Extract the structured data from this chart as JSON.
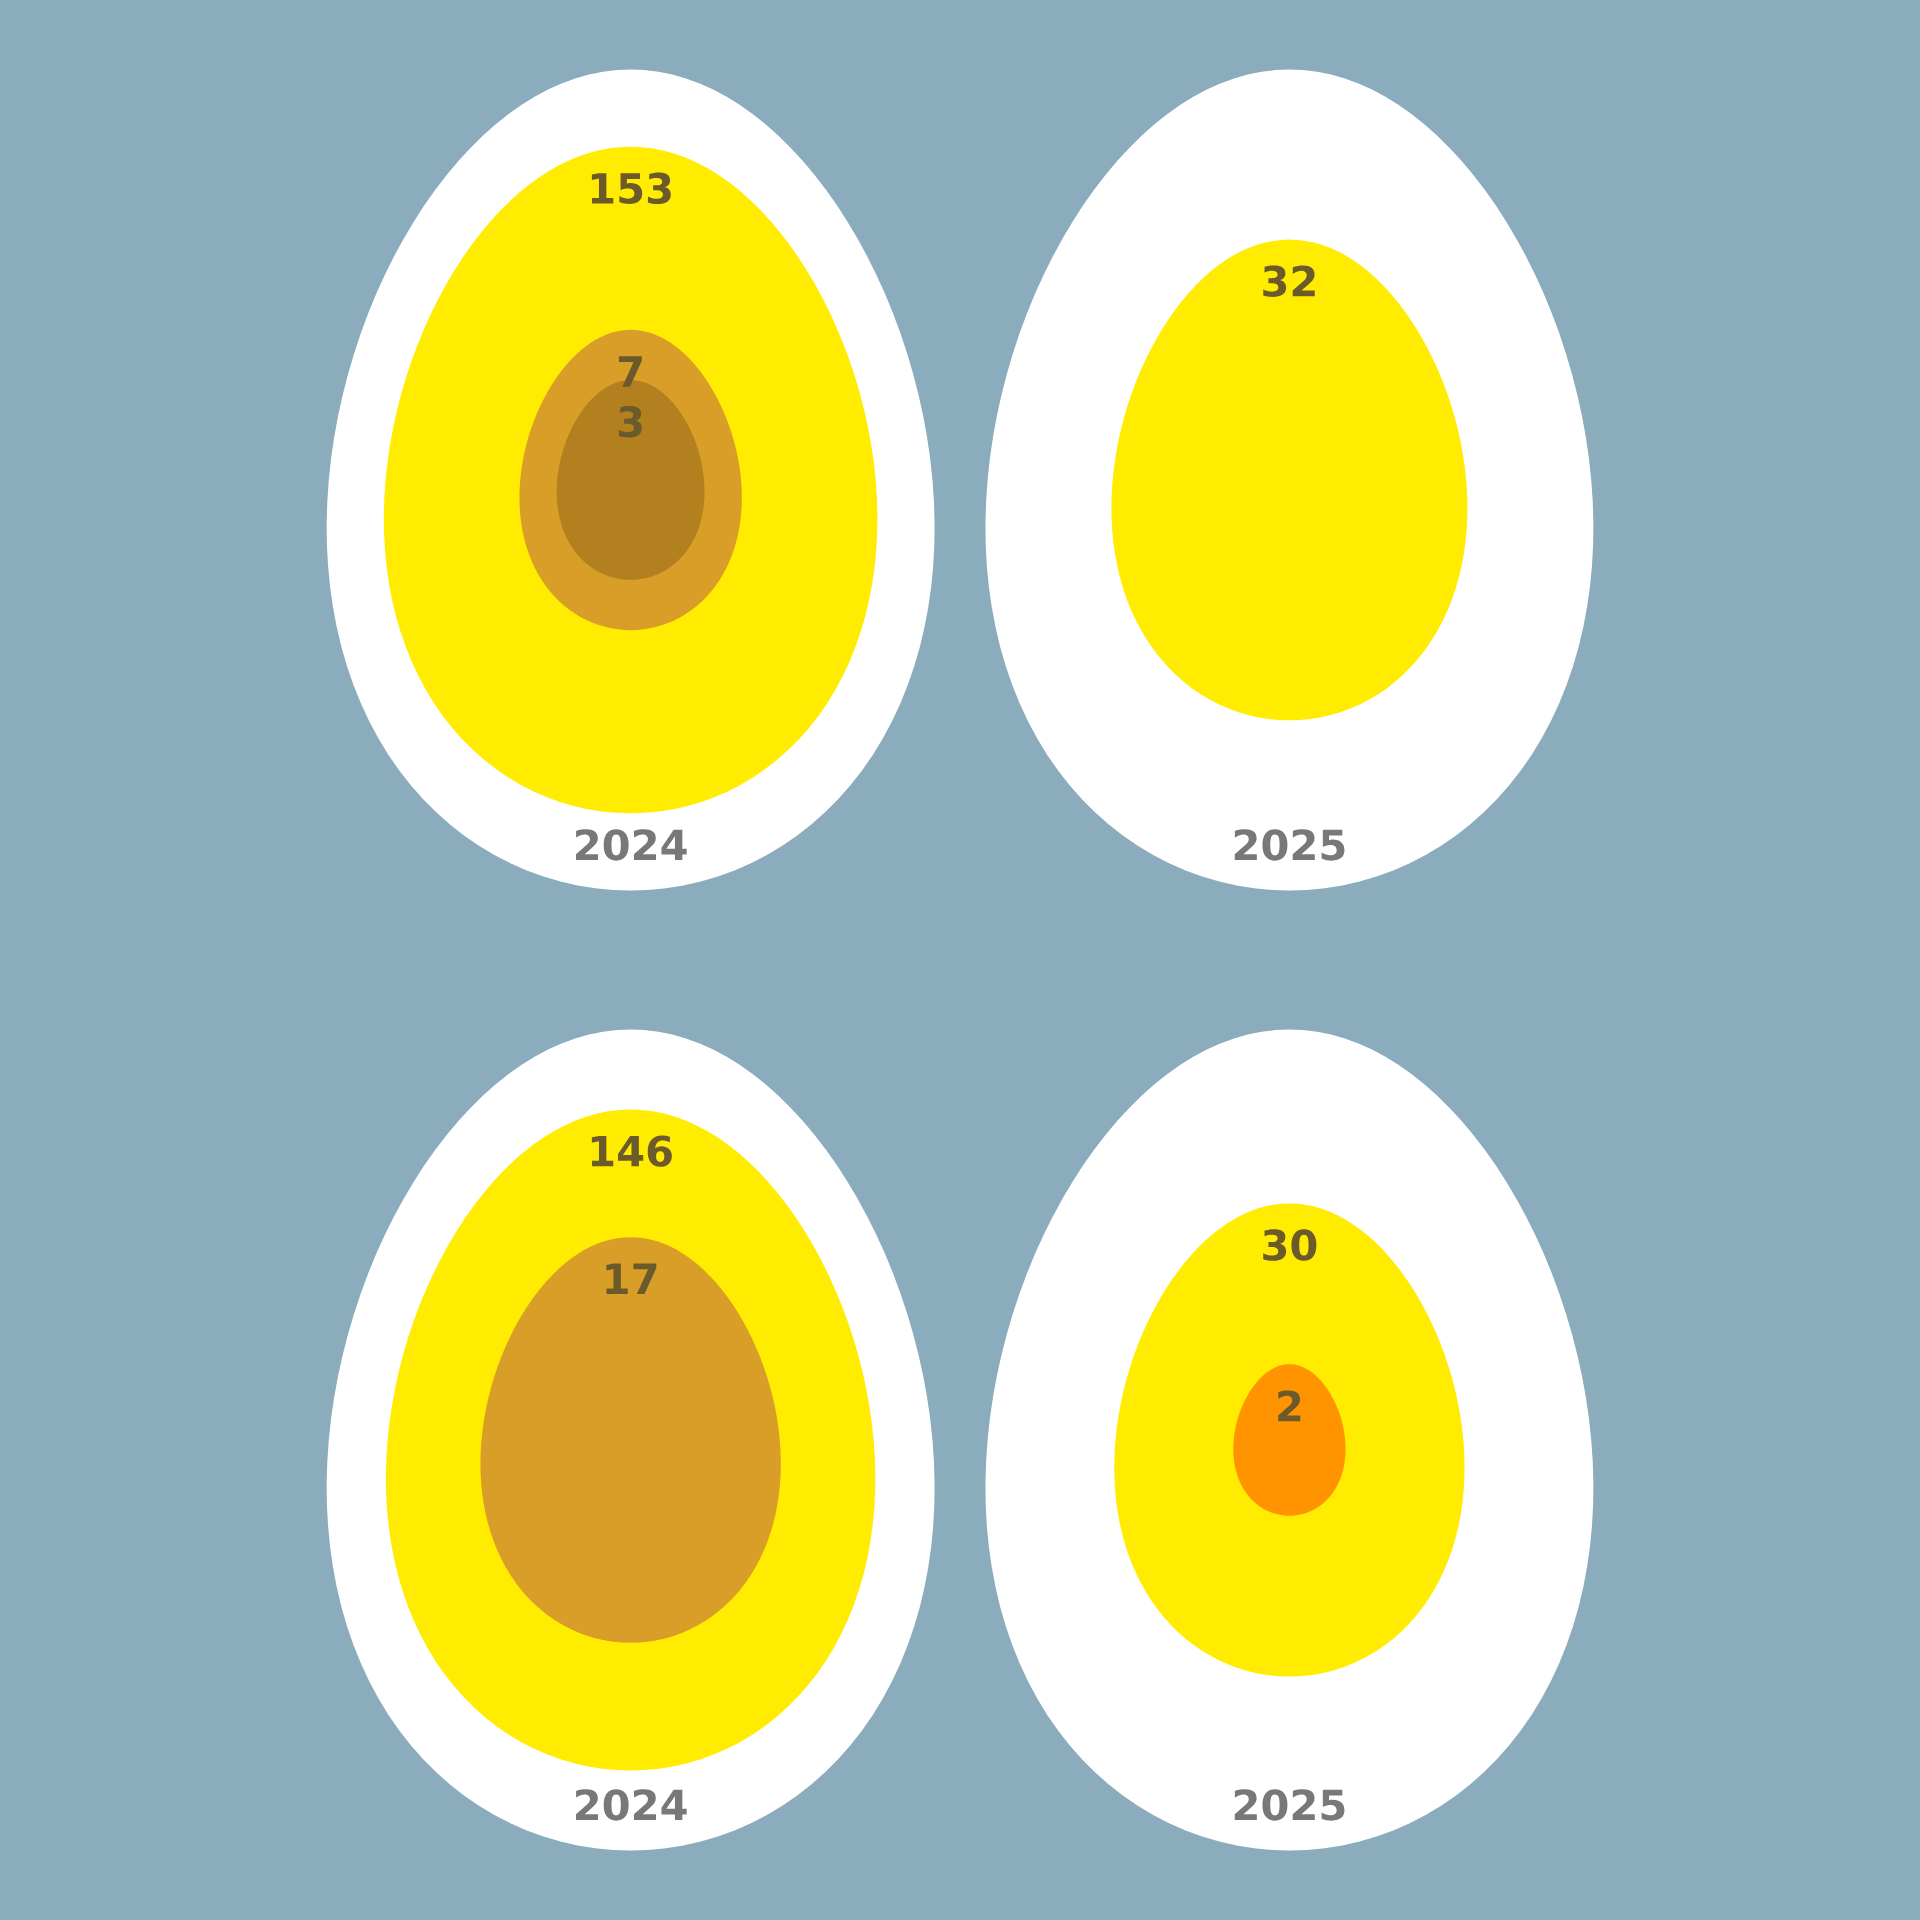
{
  "chart_data": [
    {
      "type": "other",
      "categories": [
        "2024",
        "2025"
      ],
      "data_labels": true,
      "series": [
        {
          "color": "#ffec00",
          "values": [
            153,
            32
          ]
        },
        {
          "color": "#d99e27",
          "values": [
            7,
            null
          ]
        },
        {
          "color": "#b3801f",
          "values": [
            3,
            null
          ]
        }
      ]
    },
    {
      "type": "other",
      "categories": [
        "2024",
        "2025"
      ],
      "data_labels": true,
      "series": [
        {
          "color": "#ffec00",
          "values": [
            146,
            30
          ]
        },
        {
          "colors": [
            "#d99e27",
            "#ff9300"
          ],
          "values": [
            17,
            2
          ]
        }
      ]
    }
  ]
}
